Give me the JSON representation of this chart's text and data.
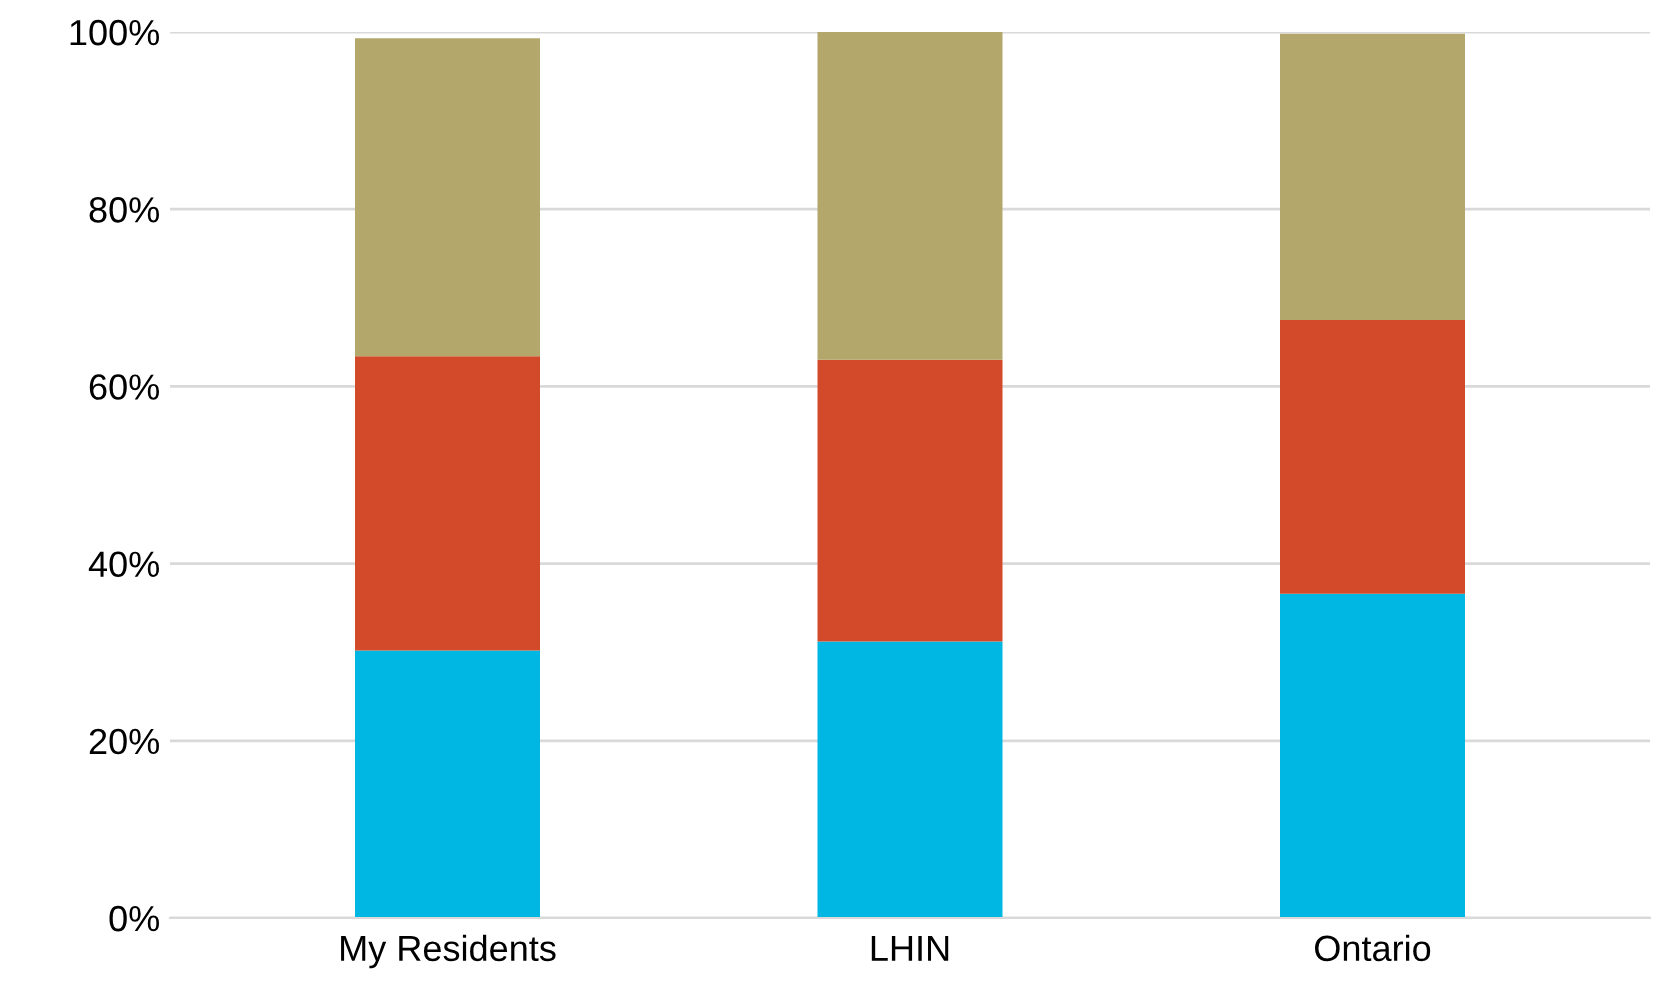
{
  "chart_data": {
    "type": "bar",
    "stacked": true,
    "categories": [
      "My Residents",
      "LHIN",
      "Ontario"
    ],
    "series": [
      {
        "color": "#00b7e4",
        "values": [
          30.2,
          31.2,
          36.6
        ]
      },
      {
        "color": "#d34a2a",
        "values": [
          33.2,
          31.8,
          30.9
        ]
      },
      {
        "color": "#b3a76c",
        "values": [
          35.9,
          37.0,
          32.3
        ]
      }
    ],
    "ylim": [
      0,
      100
    ],
    "yticks": [
      {
        "value": 0,
        "label": "0%"
      },
      {
        "value": 20,
        "label": "20%"
      },
      {
        "value": 40,
        "label": "40%"
      },
      {
        "value": 60,
        "label": "60%"
      },
      {
        "value": 80,
        "label": "80%"
      },
      {
        "value": 100,
        "label": "100%"
      }
    ],
    "grid": "y",
    "legend": false
  }
}
